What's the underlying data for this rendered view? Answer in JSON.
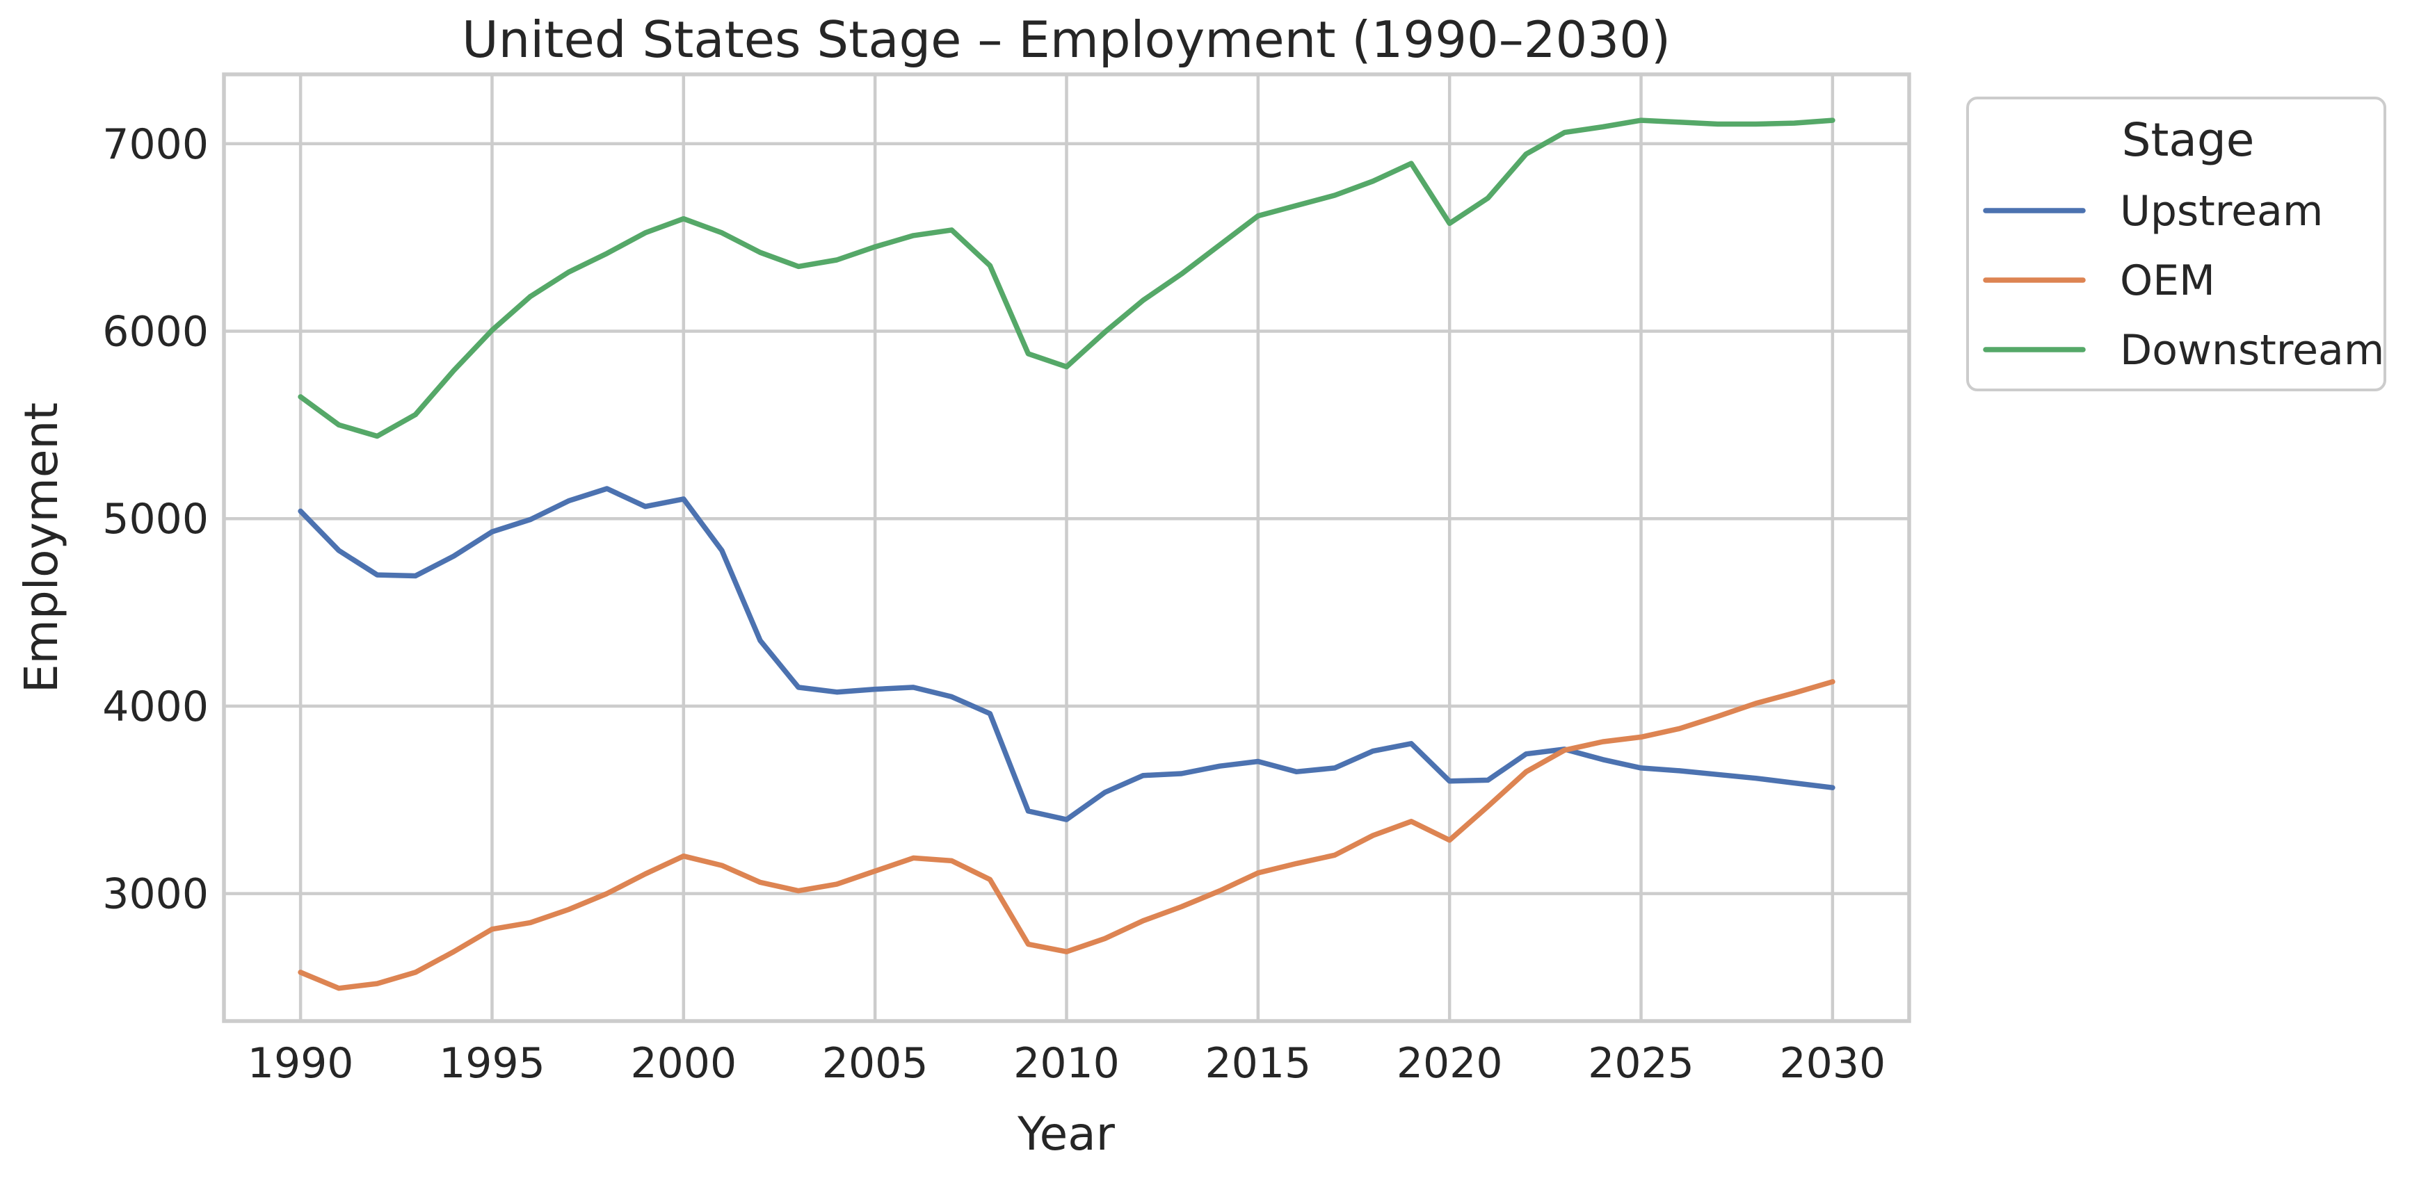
{
  "chart_data": {
    "type": "line",
    "title": "United States Stage – Employment (1990–2030)",
    "xlabel": "Year",
    "ylabel": "Employment",
    "xlim": [
      1988,
      2032
    ],
    "ylim": [
      2320,
      7370
    ],
    "xticks": [
      1990,
      1995,
      2000,
      2005,
      2010,
      2015,
      2020,
      2025,
      2030
    ],
    "yticks": [
      3000,
      4000,
      5000,
      6000,
      7000
    ],
    "grid": true,
    "legend": {
      "title": "Stage",
      "placement": "outside-top-right"
    },
    "x": [
      1990,
      1991,
      1992,
      1993,
      1994,
      1995,
      1996,
      1997,
      1998,
      1999,
      2000,
      2001,
      2002,
      2003,
      2004,
      2005,
      2006,
      2007,
      2008,
      2009,
      2010,
      2011,
      2012,
      2013,
      2014,
      2015,
      2016,
      2017,
      2018,
      2019,
      2020,
      2021,
      2022,
      2023,
      2024,
      2025,
      2026,
      2027,
      2028,
      2029,
      2030
    ],
    "series": [
      {
        "name": "Upstream",
        "color": "#4c72b0",
        "values": [
          5040,
          4830,
          4700,
          4695,
          4800,
          4930,
          4995,
          5095,
          5160,
          5065,
          5105,
          4830,
          4350,
          4100,
          4075,
          4090,
          4100,
          4050,
          3960,
          3440,
          3395,
          3540,
          3630,
          3640,
          3680,
          3705,
          3650,
          3670,
          3760,
          3800,
          3600,
          3605,
          3745,
          3770,
          3715,
          3670,
          3655,
          3635,
          3615,
          3590,
          3565
        ]
      },
      {
        "name": "OEM",
        "color": "#dd8452",
        "values": [
          2580,
          2495,
          2520,
          2580,
          2690,
          2810,
          2845,
          2915,
          3000,
          3105,
          3200,
          3150,
          3060,
          3015,
          3050,
          3120,
          3190,
          3175,
          3075,
          2730,
          2690,
          2760,
          2855,
          2930,
          3015,
          3110,
          3160,
          3205,
          3310,
          3385,
          3285,
          3465,
          3650,
          3765,
          3810,
          3835,
          3880,
          3945,
          4015,
          4070,
          4130
        ]
      },
      {
        "name": "Downstream",
        "color": "#55a868",
        "values": [
          5650,
          5500,
          5440,
          5555,
          5790,
          6005,
          6185,
          6315,
          6415,
          6525,
          6600,
          6525,
          6420,
          6345,
          6380,
          6450,
          6510,
          6540,
          6350,
          5880,
          5810,
          5995,
          6165,
          6305,
          6460,
          6615,
          6670,
          6725,
          6800,
          6895,
          6575,
          6710,
          6945,
          7060,
          7090,
          7125,
          7115,
          7105,
          7105,
          7110,
          7125
        ]
      }
    ]
  }
}
